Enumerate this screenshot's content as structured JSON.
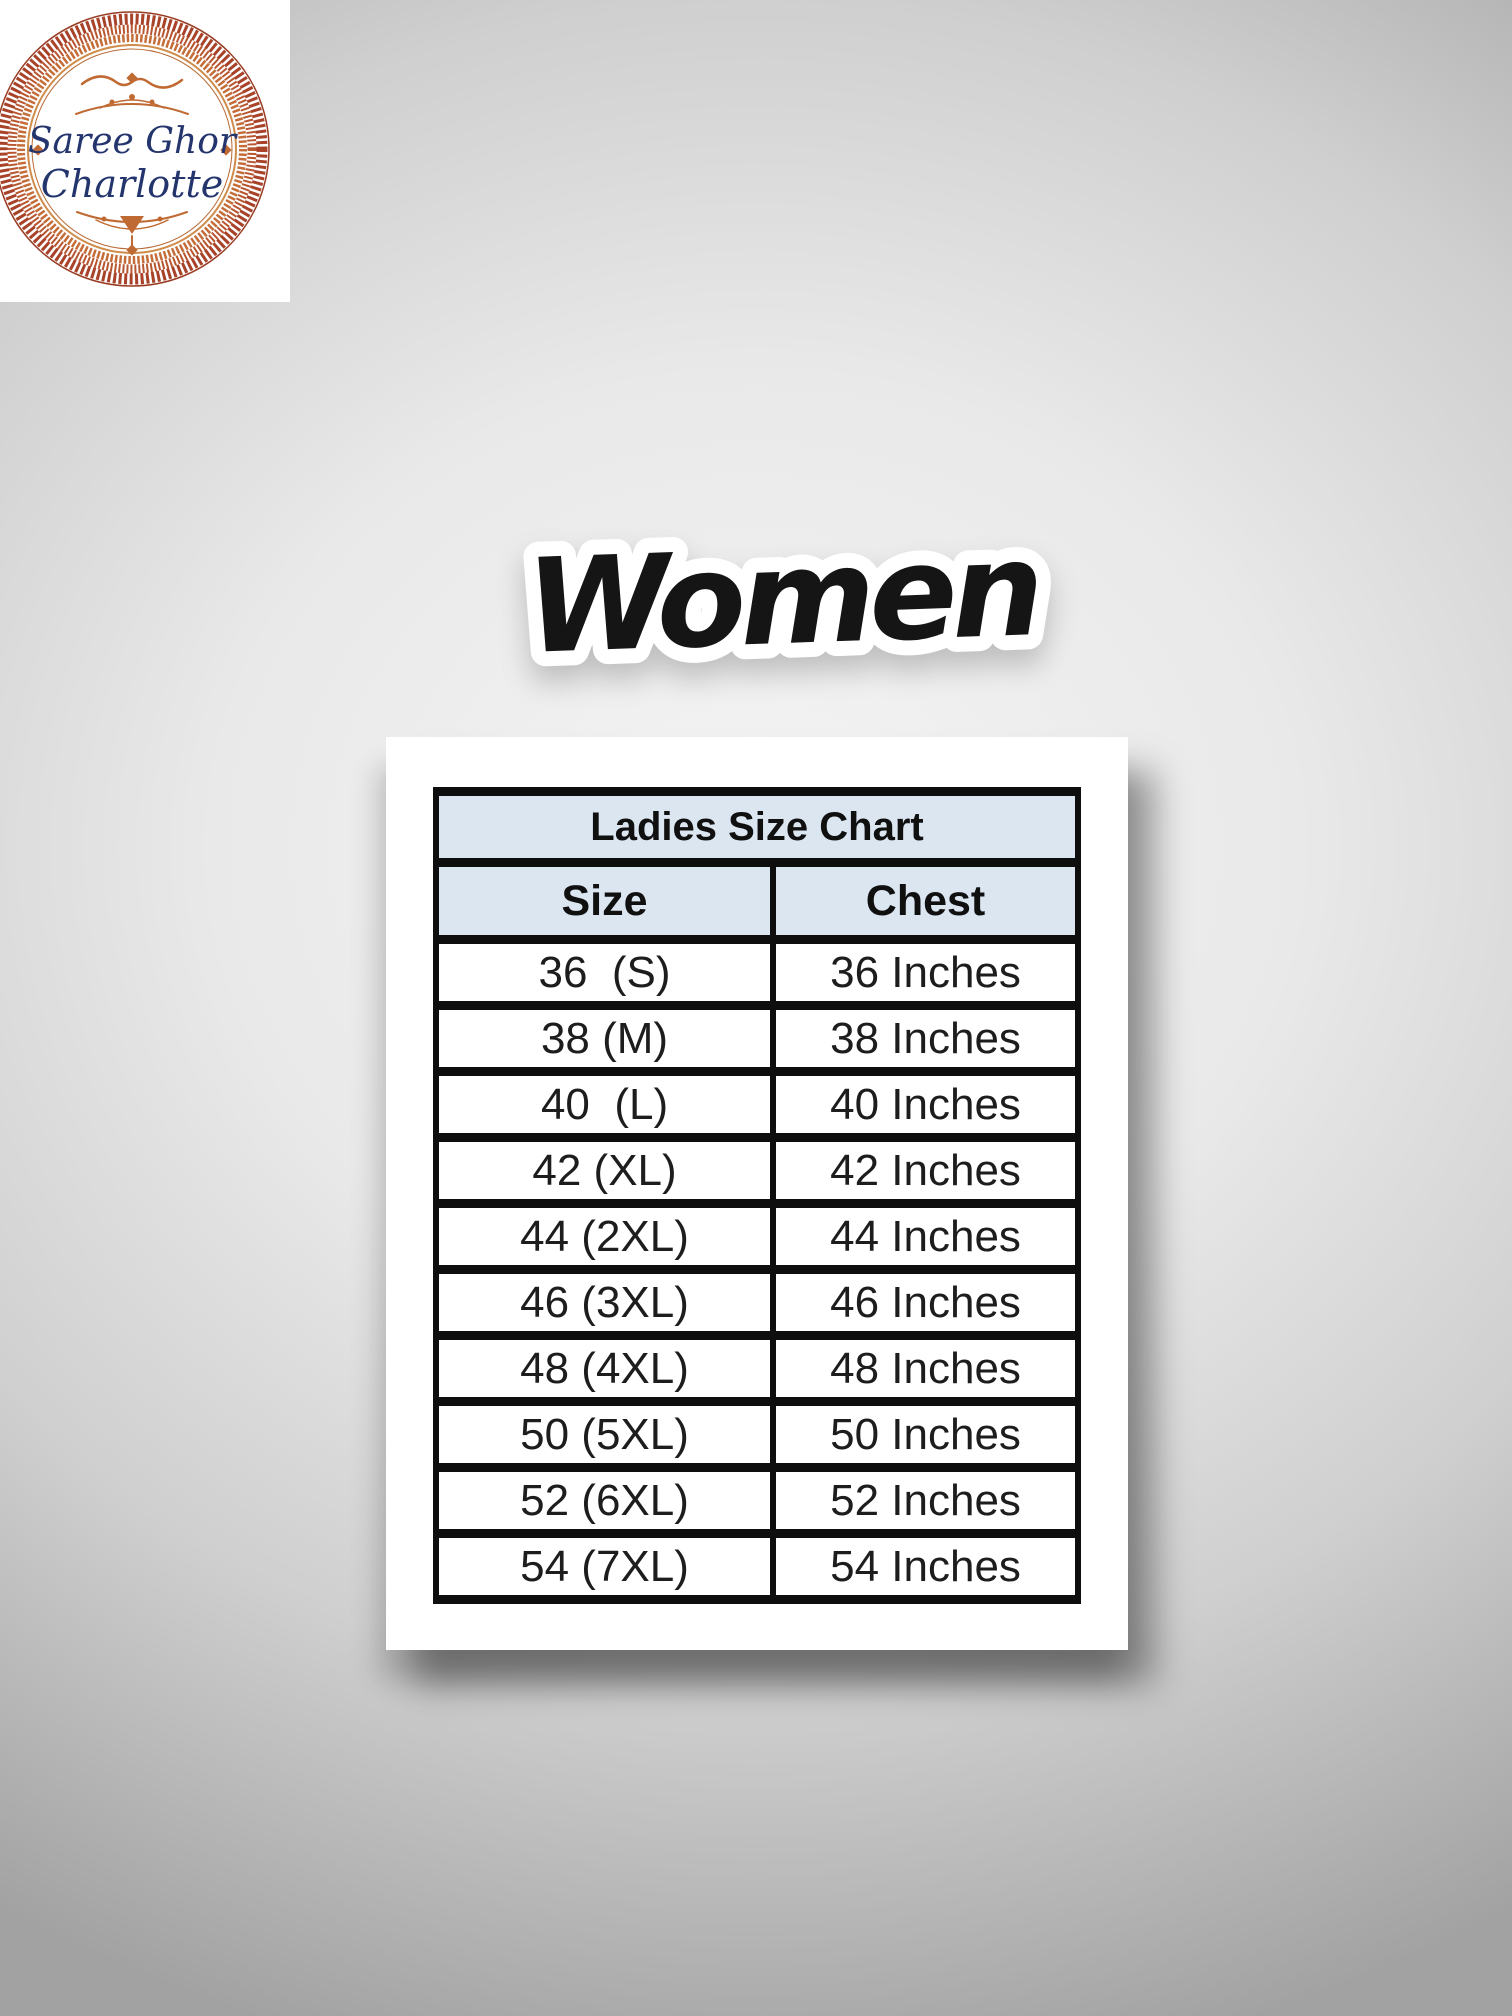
{
  "colors": {
    "page_bg_center": "#f4f4f4",
    "page_bg_edge": "#a2a2a2",
    "card_bg": "#ffffff",
    "table_border": "#0e0e0e",
    "header_bg": "#dce6f1",
    "cell_text": "#1d1d1d",
    "brand_navy": "#24356e",
    "ornament_rust": "#a8432a",
    "ornament_orange": "#c56d38",
    "title_ink": "#151515"
  },
  "brand": {
    "name_line1": "Saree Ghor",
    "name_line2": "Charlotte"
  },
  "heading": {
    "label": "Women"
  },
  "size_chart": {
    "title": "Ladies Size Chart",
    "columns": [
      "Size",
      "Chest"
    ],
    "rows": [
      {
        "size": "36  (S)",
        "chest": "36 Inches"
      },
      {
        "size": "38 (M)",
        "chest": "38 Inches"
      },
      {
        "size": "40  (L)",
        "chest": "40 Inches"
      },
      {
        "size": "42 (XL)",
        "chest": "42 Inches"
      },
      {
        "size": "44 (2XL)",
        "chest": "44 Inches"
      },
      {
        "size": "46 (3XL)",
        "chest": "46 Inches"
      },
      {
        "size": "48 (4XL)",
        "chest": "48 Inches"
      },
      {
        "size": "50 (5XL)",
        "chest": "50 Inches"
      },
      {
        "size": "52 (6XL)",
        "chest": "52 Inches"
      },
      {
        "size": "54 (7XL)",
        "chest": "54 Inches"
      }
    ]
  },
  "chart_data": {
    "type": "table",
    "title": "Ladies Size Chart",
    "columns": [
      "Size",
      "Chest"
    ],
    "rows": [
      [
        "36  (S)",
        "36 Inches"
      ],
      [
        "38 (M)",
        "38 Inches"
      ],
      [
        "40  (L)",
        "40 Inches"
      ],
      [
        "42 (XL)",
        "42 Inches"
      ],
      [
        "44 (2XL)",
        "44 Inches"
      ],
      [
        "46 (3XL)",
        "46 Inches"
      ],
      [
        "48 (4XL)",
        "48 Inches"
      ],
      [
        "50 (5XL)",
        "50 Inches"
      ],
      [
        "52 (6XL)",
        "52 Inches"
      ],
      [
        "54 (7XL)",
        "54 Inches"
      ]
    ]
  }
}
